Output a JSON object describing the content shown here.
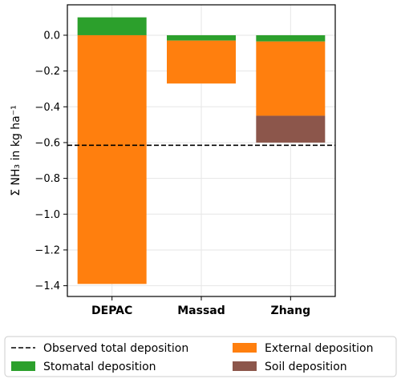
{
  "chart_data": {
    "type": "bar",
    "stacked": true,
    "title": "",
    "xlabel": "",
    "ylabel": "Σ NH₃ in kg ha⁻¹",
    "ylim": [
      -1.46,
      0.17
    ],
    "yticks": [
      0.0,
      -0.2,
      -0.4,
      -0.6,
      -0.8,
      -1.0,
      -1.2,
      -1.4
    ],
    "ytick_labels": [
      "0.0",
      "−0.2",
      "−0.4",
      "−0.6",
      "−0.8",
      "−1.0",
      "−1.2",
      "−1.4"
    ],
    "grid": true,
    "categories": [
      "DEPAC",
      "Massad",
      "Zhang"
    ],
    "series": [
      {
        "name": "Stomatal deposition",
        "color": "#2ca02c",
        "start": [
          0.0,
          0.0,
          0.0
        ],
        "values": [
          0.1,
          -0.03,
          -0.035
        ]
      },
      {
        "name": "External deposition",
        "color": "#ff7f0e",
        "start": [
          0.0,
          -0.03,
          -0.035
        ],
        "values": [
          -1.39,
          -0.24,
          -0.415
        ]
      },
      {
        "name": "Soil deposition",
        "color": "#8c564b",
        "start": [
          0.0,
          -0.27,
          -0.45
        ],
        "values": [
          0.0,
          0.0,
          -0.15
        ]
      }
    ],
    "reference_line": {
      "name": "Observed total deposition",
      "value": -0.615,
      "style": "dashed",
      "color": "#000000"
    },
    "legend_position": "bottom",
    "legend": [
      {
        "label": "Observed total deposition",
        "kind": "dashed-line",
        "color": "#000000"
      },
      {
        "label": "External deposition",
        "kind": "patch",
        "color": "#ff7f0e"
      },
      {
        "label": "Stomatal deposition",
        "kind": "patch",
        "color": "#2ca02c"
      },
      {
        "label": "Soil deposition",
        "kind": "patch",
        "color": "#8c564b"
      }
    ]
  }
}
